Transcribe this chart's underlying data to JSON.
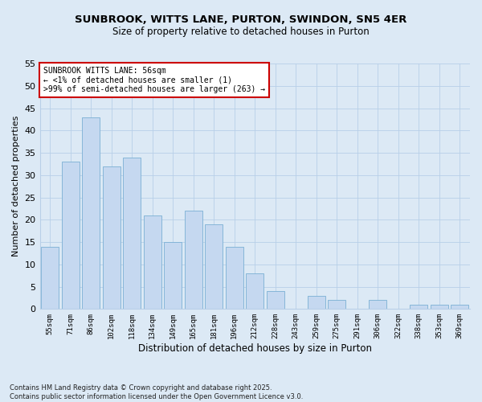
{
  "title1": "SUNBROOK, WITTS LANE, PURTON, SWINDON, SN5 4ER",
  "title2": "Size of property relative to detached houses in Purton",
  "xlabel": "Distribution of detached houses by size in Purton",
  "ylabel": "Number of detached properties",
  "categories": [
    "55sqm",
    "71sqm",
    "86sqm",
    "102sqm",
    "118sqm",
    "134sqm",
    "149sqm",
    "165sqm",
    "181sqm",
    "196sqm",
    "212sqm",
    "228sqm",
    "243sqm",
    "259sqm",
    "275sqm",
    "291sqm",
    "306sqm",
    "322sqm",
    "338sqm",
    "353sqm",
    "369sqm"
  ],
  "values": [
    14,
    33,
    43,
    32,
    34,
    21,
    15,
    22,
    19,
    14,
    8,
    4,
    0,
    3,
    2,
    0,
    2,
    0,
    1,
    1,
    1
  ],
  "bar_color": "#c5d8f0",
  "bar_edgecolor": "#7aafd4",
  "annotation_text": "SUNBROOK WITTS LANE: 56sqm\n← <1% of detached houses are smaller (1)\n>99% of semi-detached houses are larger (263) →",
  "annotation_box_color": "#ffffff",
  "annotation_box_edgecolor": "#cc0000",
  "footer_text": "Contains HM Land Registry data © Crown copyright and database right 2025.\nContains public sector information licensed under the Open Government Licence v3.0.",
  "bg_color": "#dce9f5",
  "grid_color": "#b8cfe8",
  "ylim": [
    0,
    55
  ],
  "yticks": [
    0,
    5,
    10,
    15,
    20,
    25,
    30,
    35,
    40,
    45,
    50,
    55
  ]
}
